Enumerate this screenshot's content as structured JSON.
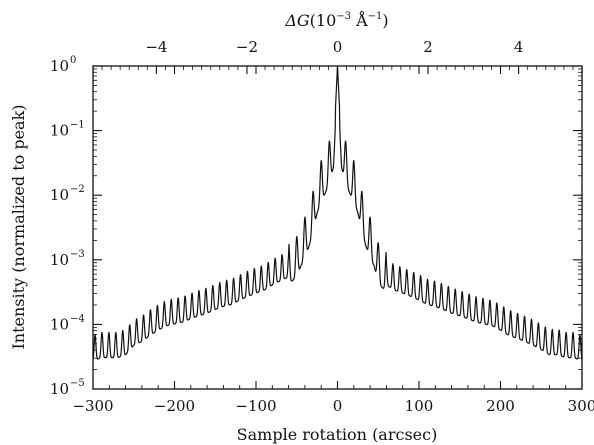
{
  "chart_data": {
    "type": "line",
    "xlabel": "Sample rotation (arcsec)",
    "ylabel": "Intensity (normalized to peak)",
    "top_axis_label": {
      "symbol": "ΔG",
      "unit_prefix": "(10",
      "unit_exp": "−3",
      "unit_suffix": " Å",
      "unit_exp2": "−1",
      "close": ")"
    },
    "xlim": [
      -300,
      300
    ],
    "ylim": [
      1e-05,
      1
    ],
    "y_scale": "log",
    "x_ticks": [
      {
        "value": -300,
        "label": "−300"
      },
      {
        "value": -200,
        "label": "−200"
      },
      {
        "value": -100,
        "label": "−100"
      },
      {
        "value": 0,
        "label": "0"
      },
      {
        "value": 100,
        "label": "100"
      },
      {
        "value": 200,
        "label": "200"
      },
      {
        "value": 300,
        "label": "300"
      }
    ],
    "y_ticks": [
      {
        "value": 1,
        "base": "10",
        "exp": "0"
      },
      {
        "value": 0.1,
        "base": "10",
        "exp": "−1"
      },
      {
        "value": 0.01,
        "base": "10",
        "exp": "−2"
      },
      {
        "value": 0.001,
        "base": "10",
        "exp": "−3"
      },
      {
        "value": 0.0001,
        "base": "10",
        "exp": "−4"
      },
      {
        "value": 1e-05,
        "base": "10",
        "exp": "−5"
      }
    ],
    "top_ticks": [
      {
        "value": -4,
        "label": "−4"
      },
      {
        "value": -2,
        "label": "−2"
      },
      {
        "value": 0,
        "label": "0"
      },
      {
        "value": 2,
        "label": "2"
      },
      {
        "value": 4,
        "label": "4"
      }
    ],
    "top_axis_xlim": [
      -5.4,
      5.4
    ],
    "grid": false,
    "series": [
      {
        "color": "#111111",
        "x": [
          -300,
          -290,
          -280,
          -270,
          -260,
          -250,
          -240,
          -230,
          -220,
          -210,
          -200,
          -190,
          -180,
          -170,
          -160,
          -150,
          -140,
          -130,
          -120,
          -110,
          -100,
          -90,
          -80,
          -70,
          -60,
          -50,
          -45,
          -40,
          -35,
          -30,
          -25,
          -20,
          -15,
          -10,
          -5,
          0,
          5,
          10,
          15,
          20,
          25,
          30,
          35,
          40,
          45,
          50,
          60,
          70,
          80,
          90,
          100,
          110,
          120,
          130,
          140,
          150,
          160,
          170,
          180,
          190,
          200,
          210,
          220,
          230,
          240,
          250,
          260,
          270,
          280,
          290,
          300
        ],
        "y": [
          4e-05,
          4.5e-05,
          4.5e-05,
          4.5e-05,
          5e-05,
          7e-05,
          8e-05,
          0.0001,
          0.00012,
          0.00014,
          0.00015,
          0.00016,
          0.00018,
          0.0002,
          0.00022,
          0.00025,
          0.00028,
          0.0003,
          0.00035,
          0.0004,
          0.00045,
          0.0005,
          0.0006,
          0.0007,
          0.0008,
          0.001,
          0.0015,
          0.002,
          0.003,
          0.005,
          0.01,
          0.015,
          0.02,
          0.03,
          0.05,
          1,
          0.05,
          0.03,
          0.02,
          0.015,
          0.01,
          0.005,
          0.003,
          0.002,
          0.0015,
          0.0008,
          0.0006,
          0.0005,
          0.00045,
          0.0004,
          0.00035,
          0.0003,
          0.00028,
          0.00025,
          0.00022,
          0.0002,
          0.00018,
          0.00016,
          0.00015,
          0.00014,
          0.00012,
          0.0001,
          9e-05,
          8e-05,
          7e-05,
          6e-05,
          5e-05,
          5e-05,
          4.5e-05,
          4.5e-05,
          4e-05
        ]
      }
    ]
  }
}
